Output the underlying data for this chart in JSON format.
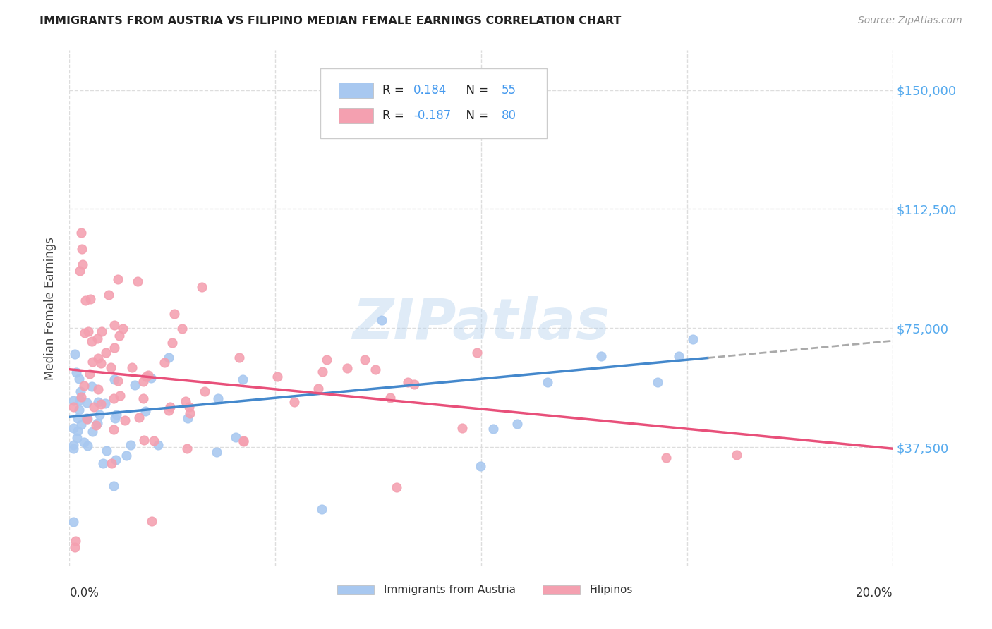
{
  "title": "IMMIGRANTS FROM AUSTRIA VS FILIPINO MEDIAN FEMALE EARNINGS CORRELATION CHART",
  "source": "Source: ZipAtlas.com",
  "ylabel": "Median Female Earnings",
  "yticks": [
    37500,
    75000,
    112500,
    150000
  ],
  "ytick_labels": [
    "$37,500",
    "$75,000",
    "$112,500",
    "$150,000"
  ],
  "xlim": [
    0.0,
    0.2
  ],
  "ylim": [
    0,
    162500
  ],
  "austria_color": "#a8c8f0",
  "filipino_color": "#f4a0b0",
  "austria_line_color": "#4488cc",
  "filipino_line_color": "#e8507a",
  "gray_dash_color": "#aaaaaa",
  "austria_R": 0.184,
  "austria_N": 55,
  "filipino_R": -0.187,
  "filipino_N": 80,
  "legend_label_austria": "Immigrants from Austria",
  "legend_label_filipino": "Filipinos",
  "watermark_text": "ZIPatlas",
  "right_ytick_color": "#55aaee",
  "legend_text_color": "#222222",
  "legend_value_color": "#4499ee",
  "source_color": "#999999",
  "title_color": "#222222",
  "grid_color": "#dddddd",
  "austria_line_x_max": 0.155,
  "austria_line_intercept": 47000,
  "austria_line_slope": 120000,
  "filipino_line_intercept": 62000,
  "filipino_line_slope": -125000
}
